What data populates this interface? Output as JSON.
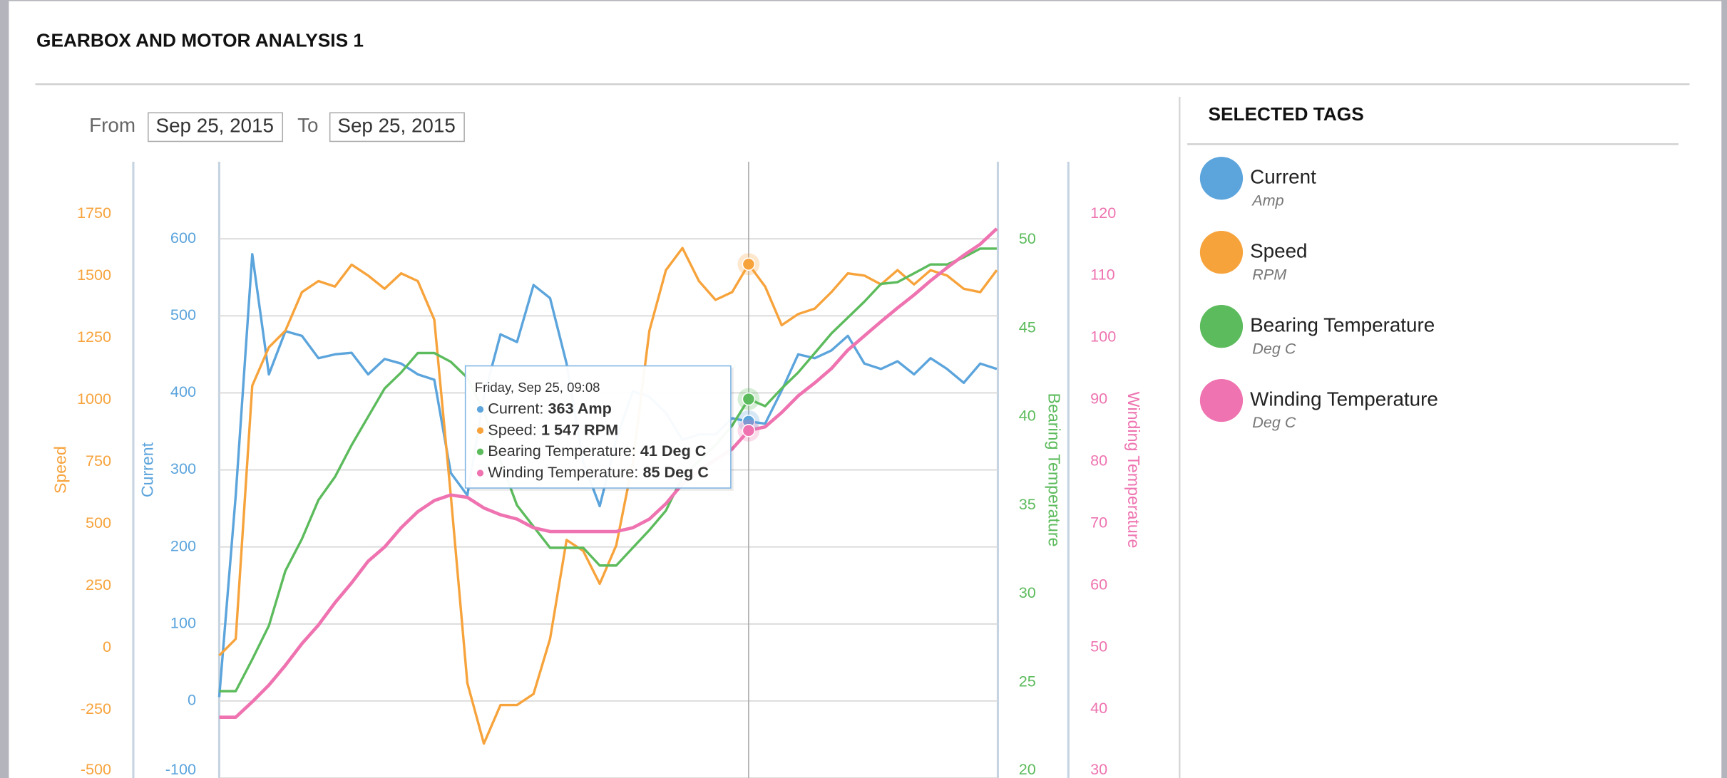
{
  "header": {
    "title": "GEARBOX AND MOTOR ANALYSIS 1"
  },
  "filters": {
    "from_label": "From",
    "from_value": "Sep 25, 2015",
    "to_label": "To",
    "to_value": "Sep 25, 2015"
  },
  "selected_tags": {
    "title": "SELECTED TAGS"
  },
  "chart_data": {
    "type": "line",
    "axes": [
      {
        "label": "Speed",
        "lim": [
          -525,
          1960
        ],
        "ticks": [
          -500,
          -250,
          0,
          250,
          500,
          750,
          1000,
          1250,
          1500,
          1750
        ]
      },
      {
        "label": "Current",
        "lim": [
          -100,
          700
        ],
        "ticks": [
          -100,
          0,
          100,
          200,
          300,
          400,
          500,
          600
        ],
        "grid": true
      },
      {
        "label": "Bearing Temperature",
        "lim": [
          19.6,
          54.4
        ],
        "ticks": [
          20,
          25,
          30,
          35,
          40,
          45,
          50
        ]
      },
      {
        "label": "Winding Temperature",
        "lim": [
          28.9,
          128.4
        ],
        "ticks": [
          30,
          40,
          50,
          60,
          70,
          80,
          90,
          100,
          110,
          120
        ]
      }
    ],
    "series": [
      {
        "name": "Current",
        "unit": "Amp",
        "color": "#5ba4dc",
        "axis": 1,
        "values": [
          5,
          267,
          580,
          424,
          480,
          474,
          445,
          450,
          452,
          424,
          444,
          438,
          424,
          417,
          296,
          267,
          395,
          476,
          466,
          540,
          523,
          438,
          310,
          253,
          339,
          402,
          395,
          374,
          339,
          346,
          346,
          367,
          363,
          360,
          403,
          450,
          445,
          455,
          474,
          438,
          431,
          441,
          424,
          445,
          431,
          413,
          438,
          431
        ]
      },
      {
        "name": "Speed",
        "unit": "RPM",
        "color": "#f7a33c",
        "axis": 0,
        "values": [
          -31,
          36,
          1057,
          1212,
          1279,
          1434,
          1479,
          1457,
          1545,
          1501,
          1448,
          1510,
          1479,
          1323,
          613,
          -142,
          -386,
          -231,
          -231,
          -186,
          36,
          435,
          391,
          258,
          413,
          746,
          1279,
          1523,
          1612,
          1479,
          1403,
          1434,
          1547,
          1457,
          1301,
          1346,
          1368,
          1434,
          1510,
          1501,
          1465,
          1523,
          1465,
          1523,
          1501,
          1448,
          1434,
          1523
        ]
      },
      {
        "name": "Bearing Temperature",
        "unit": "Deg C",
        "color": "#5cbb5c",
        "axis": 2,
        "values": [
          24.5,
          24.5,
          26.3,
          28.2,
          31.3,
          33.1,
          35.3,
          36.6,
          38.4,
          40,
          41.6,
          42.5,
          43.6,
          43.6,
          43.1,
          42.2,
          40.3,
          37.5,
          35,
          33.8,
          32.6,
          32.6,
          32.6,
          31.6,
          31.6,
          32.6,
          33.6,
          34.7,
          36.6,
          37.5,
          38.4,
          39.5,
          41,
          40.6,
          41.6,
          42.5,
          43.6,
          44.7,
          45.6,
          46.5,
          47.5,
          47.6,
          48.1,
          48.6,
          48.6,
          49,
          49.5,
          49.5
        ]
      },
      {
        "name": "Winding Temperature",
        "unit": "Deg C",
        "color": "#ee73b0",
        "axis": 3,
        "values": [
          38.7,
          38.7,
          41.2,
          43.9,
          47.1,
          50.6,
          53.6,
          57.2,
          60.4,
          63.9,
          66.2,
          69.3,
          71.9,
          73.7,
          74.6,
          74.2,
          72.5,
          71.4,
          70.7,
          69.3,
          68.7,
          68.7,
          68.7,
          68.7,
          68.7,
          69.3,
          70.7,
          73.2,
          76.4,
          78.5,
          80.3,
          82,
          85,
          85.6,
          87.9,
          90.6,
          92.7,
          95,
          98,
          100.3,
          102.6,
          104.8,
          106.9,
          109.2,
          111.3,
          113.3,
          115.1,
          117.6
        ]
      }
    ],
    "tooltip": {
      "title": "Friday, Sep 25, 09:08",
      "items": [
        {
          "label": "Current:",
          "value": "363 Amp"
        },
        {
          "label": "Speed:",
          "value": "1 547 RPM"
        },
        {
          "label": "Bearing Temperature:",
          "value": "41 Deg C"
        },
        {
          "label": "Winding Temperature:",
          "value": "85 Deg C"
        }
      ]
    }
  }
}
